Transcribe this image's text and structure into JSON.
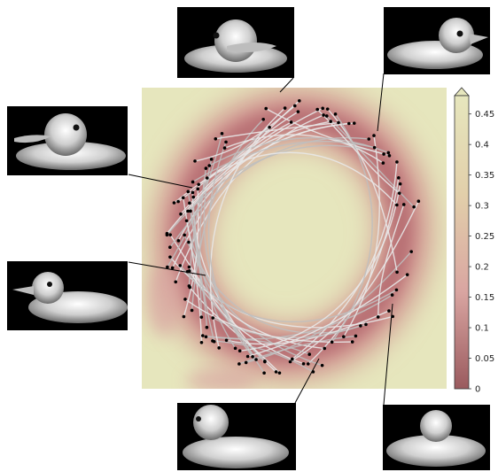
{
  "chart_data": {
    "type": "heatmap",
    "colorbar": {
      "ticks": [
        "0",
        "0.05",
        "0.1",
        "0.15",
        "0.2",
        "0.25",
        "0.3",
        "0.35",
        "0.4",
        "0.45"
      ],
      "tick_values": [
        0,
        0.05,
        0.1,
        0.15,
        0.2,
        0.25,
        0.3,
        0.35,
        0.4,
        0.45
      ],
      "range": [
        0,
        0.48
      ],
      "extend": "max",
      "colors": [
        "#9a5a5e",
        "#d9a5a1",
        "#e6e6bd"
      ]
    },
    "heatmap": {
      "description_shape": "ring",
      "low_value": 0.0,
      "high_value": 0.48
    },
    "overlay": {
      "curves": "gray trajectories forming a closed loop",
      "point_color": "#000000",
      "curve_color": "#c8c8c8"
    },
    "thumbnails": [
      {
        "view": "duck-facing-left-top"
      },
      {
        "view": "duck-facing-right-top-right"
      },
      {
        "view": "duck-facing-left-upper-left"
      },
      {
        "view": "duck-facing-left-middle-left"
      },
      {
        "view": "duck-facing-front-bottom"
      },
      {
        "view": "duck-facing-back-bottom-right"
      }
    ]
  }
}
